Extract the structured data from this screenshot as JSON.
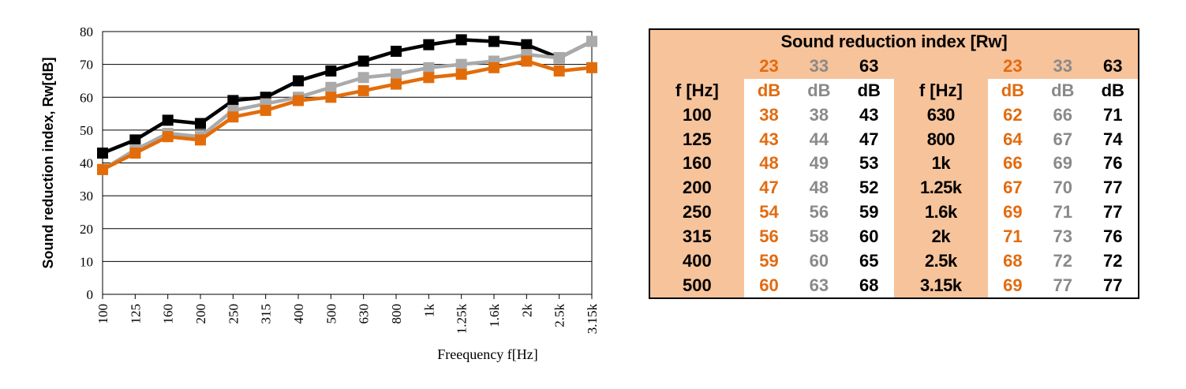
{
  "chart_data": {
    "type": "line",
    "ylabel": "Sound reduction index, Rw[dB]",
    "xlabel": "Freequency    f[Hz]",
    "ylim": [
      0,
      80
    ],
    "yticks": [
      "0",
      "10",
      "20",
      "30",
      "40",
      "50",
      "60",
      "70",
      "80"
    ],
    "categories": [
      "100",
      "125",
      "160",
      "200",
      "250",
      "315",
      "400",
      "500",
      "630",
      "800",
      "1k",
      "1.25k",
      "1.6k",
      "2k",
      "2.5k",
      "3.15k"
    ],
    "grid": "horizontal",
    "series": [
      {
        "color": "#000000",
        "values": [
          43,
          47,
          53,
          52,
          59,
          60,
          65,
          68,
          71,
          74,
          76,
          77.5,
          77,
          76,
          72,
          77
        ]
      },
      {
        "color": "#aaaaaa",
        "values": [
          38,
          44,
          49,
          48,
          56,
          58,
          60,
          63,
          66,
          67,
          69,
          70,
          71,
          73,
          72,
          77
        ]
      },
      {
        "color": "#e36c0a",
        "values": [
          38,
          43,
          48,
          47,
          54,
          56,
          59,
          60,
          62,
          64,
          66,
          67,
          69,
          71,
          68,
          69
        ]
      }
    ]
  },
  "table": {
    "title": "Sound reduction index [Rw]",
    "thickness_row": [
      "",
      "23",
      "33",
      "63",
      "",
      "23",
      "33",
      "63"
    ],
    "unit_row": [
      "f [Hz]",
      "dB",
      "dB",
      "dB",
      "f [Hz]",
      "dB",
      "dB",
      "dB"
    ],
    "rows": [
      [
        "100",
        "38",
        "38",
        "43",
        "630",
        "62",
        "66",
        "71"
      ],
      [
        "125",
        "43",
        "44",
        "47",
        "800",
        "64",
        "67",
        "74"
      ],
      [
        "160",
        "48",
        "49",
        "53",
        "1k",
        "66",
        "69",
        "76"
      ],
      [
        "200",
        "47",
        "48",
        "52",
        "1.25k",
        "67",
        "70",
        "77"
      ],
      [
        "250",
        "54",
        "56",
        "59",
        "1.6k",
        "69",
        "71",
        "77"
      ],
      [
        "315",
        "56",
        "58",
        "60",
        "2k",
        "71",
        "73",
        "76"
      ],
      [
        "400",
        "59",
        "60",
        "65",
        "2.5k",
        "68",
        "72",
        "72"
      ],
      [
        "500",
        "60",
        "63",
        "68",
        "3.15k",
        "69",
        "77",
        "77"
      ]
    ]
  },
  "colors": {
    "orange": "#e36c0a",
    "gray": "#aaaaaa",
    "black": "#000000",
    "peach": "#f7c39a"
  }
}
